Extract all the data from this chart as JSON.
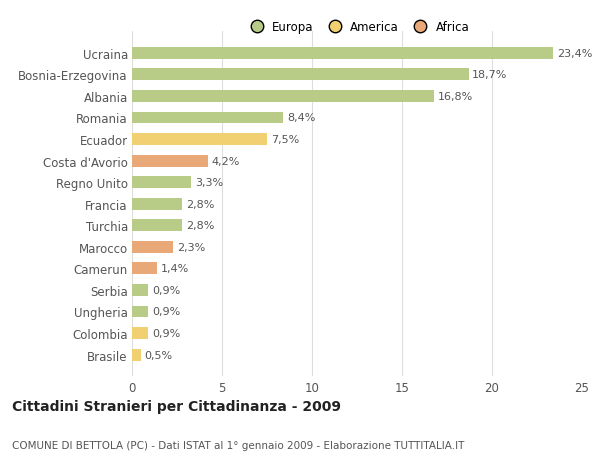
{
  "categories": [
    "Brasile",
    "Colombia",
    "Ungheria",
    "Serbia",
    "Camerun",
    "Marocco",
    "Turchia",
    "Francia",
    "Regno Unito",
    "Costa d'Avorio",
    "Ecuador",
    "Romania",
    "Albania",
    "Bosnia-Erzegovina",
    "Ucraina"
  ],
  "values": [
    0.5,
    0.9,
    0.9,
    0.9,
    1.4,
    2.3,
    2.8,
    2.8,
    3.3,
    4.2,
    7.5,
    8.4,
    16.8,
    18.7,
    23.4
  ],
  "labels": [
    "0,5%",
    "0,9%",
    "0,9%",
    "0,9%",
    "1,4%",
    "2,3%",
    "2,8%",
    "2,8%",
    "3,3%",
    "4,2%",
    "7,5%",
    "8,4%",
    "16,8%",
    "18,7%",
    "23,4%"
  ],
  "colors": [
    "#f0d070",
    "#f0d070",
    "#b8cc88",
    "#b8cc88",
    "#e8a878",
    "#e8a878",
    "#b8cc88",
    "#b8cc88",
    "#b8cc88",
    "#e8a878",
    "#f0d070",
    "#b8cc88",
    "#b8cc88",
    "#b8cc88",
    "#b8cc88"
  ],
  "legend_labels": [
    "Europa",
    "America",
    "Africa"
  ],
  "legend_colors": [
    "#b8cc88",
    "#f0d070",
    "#e8a878"
  ],
  "title": "Cittadini Stranieri per Cittadinanza - 2009",
  "subtitle": "COMUNE DI BETTOLA (PC) - Dati ISTAT al 1° gennaio 2009 - Elaborazione TUTTITALIA.IT",
  "xlim": [
    0,
    25
  ],
  "xticks": [
    0,
    5,
    10,
    15,
    20,
    25
  ],
  "bar_height": 0.55,
  "bg_color": "#ffffff",
  "grid_color": "#dddddd",
  "text_color": "#555555",
  "title_fontsize": 10,
  "subtitle_fontsize": 7.5,
  "label_fontsize": 8,
  "tick_fontsize": 8.5,
  "legend_fontsize": 8.5
}
